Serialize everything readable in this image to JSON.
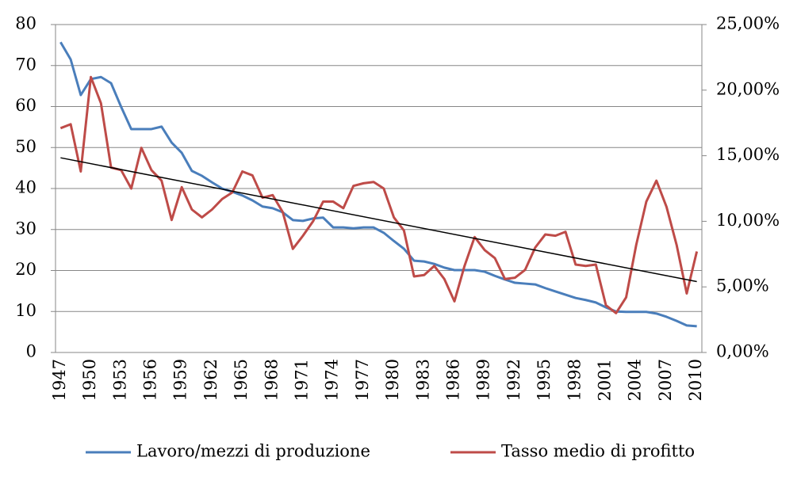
{
  "chart_data": {
    "type": "line",
    "categories": [
      1947,
      null,
      null,
      1950,
      null,
      null,
      1953,
      null,
      null,
      1956,
      null,
      null,
      1959,
      null,
      null,
      1962,
      null,
      null,
      1965,
      null,
      null,
      1968,
      null,
      null,
      1971,
      null,
      null,
      1974,
      null,
      null,
      1977,
      null,
      null,
      1980,
      null,
      null,
      1983,
      null,
      null,
      1986,
      null,
      null,
      1989,
      null,
      null,
      1992,
      null,
      null,
      1995,
      null,
      null,
      1998,
      null,
      null,
      2001,
      null,
      null,
      2004,
      null,
      null,
      2007,
      null,
      null,
      2010
    ],
    "series": [
      {
        "name": "Lavoro/mezzi di produzione",
        "color": "#4a7ebb",
        "values": [
          75.7,
          71.5,
          62.8,
          66.7,
          67.2,
          65.7,
          59.9,
          54.5,
          54.5,
          54.5,
          55.1,
          51.2,
          48.7,
          44.3,
          43.1,
          41.5,
          40,
          39.2,
          38.3,
          37.1,
          35.6,
          35.2,
          34.2,
          32.3,
          32.1,
          32.7,
          32.9,
          30.5,
          30.5,
          30.3,
          30.5,
          30.5,
          29.2,
          27.2,
          25.3,
          22.4,
          22.2,
          21.6,
          20.7,
          20.1,
          20.1,
          20.1,
          19.7,
          18.7,
          17.8,
          17,
          16.8,
          16.6,
          15.7,
          14.9,
          14.1,
          13.3,
          12.8,
          12.2,
          11,
          10,
          9.9,
          9.9,
          9.9,
          9.5,
          8.7,
          7.7,
          6.6,
          6.4
        ]
      },
      {
        "name": "Tasso medio di profitto",
        "color": "#be4b48",
        "axis": "y2",
        "values": [
          17.1,
          17.4,
          13.8,
          21,
          19,
          14.1,
          13.9,
          12.5,
          15.6,
          13.9,
          13.1,
          10.1,
          12.6,
          10.9,
          10.3,
          10.9,
          11.7,
          12.2,
          13.8,
          13.5,
          11.8,
          12,
          10.7,
          7.9,
          8.9,
          10,
          11.5,
          11.5,
          11,
          12.7,
          12.9,
          13,
          12.5,
          10.3,
          9.3,
          5.8,
          5.9,
          6.6,
          5.6,
          3.9,
          6.6,
          8.8,
          7.8,
          7.2,
          5.6,
          5.7,
          6.3,
          8,
          9,
          8.9,
          9.2,
          6.7,
          6.6,
          6.7,
          3.6,
          3,
          4.2,
          8.2,
          11.5,
          13.1,
          11.1,
          8.2,
          4.5,
          7.7
        ]
      }
    ],
    "trend": {
      "values": [
        47.5,
        17.3
      ],
      "color": "#000000"
    },
    "ylim": [
      0,
      80
    ],
    "yticks": [
      0,
      10,
      20,
      30,
      40,
      50,
      60,
      70,
      80
    ],
    "y2lim": [
      0,
      25
    ],
    "y2ticks": [
      {
        "value": 0,
        "label": "0,00%"
      },
      {
        "value": 5,
        "label": "5,00%"
      },
      {
        "value": 10,
        "label": "10,00%"
      },
      {
        "value": 15,
        "label": "15,00%"
      },
      {
        "value": 20,
        "label": "20,00%"
      },
      {
        "value": 25,
        "label": "25,00%"
      }
    ],
    "grid": true,
    "legend": "bottom"
  }
}
